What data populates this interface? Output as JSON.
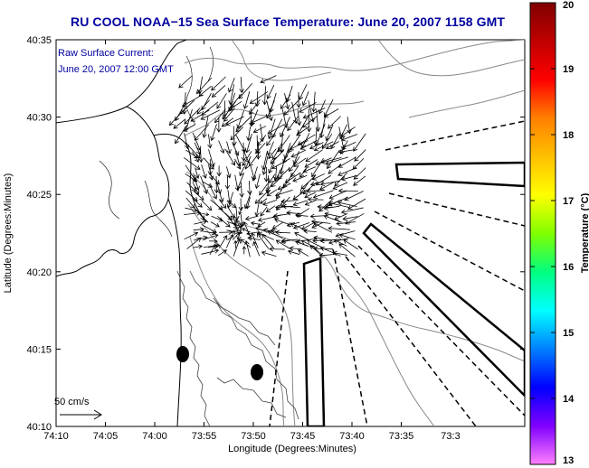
{
  "title": "RU COOL  NOAA−15  Sea Surface Temperature:  June 20, 2007 1158 GMT",
  "annotations": {
    "line1": "Raw Surface Current:",
    "line2": "June 20, 2007 12:00 GMT"
  },
  "scale_label": "50 cm/s",
  "axes": {
    "xlabel": "Longitude (Degrees:Minutes)",
    "ylabel": "Latitude (Degrees:Minutes)",
    "x_ticks": [
      "74:10",
      "74:05",
      "74:00",
      "73:55",
      "73:50",
      "73:45",
      "73:40",
      "73:35",
      "73:3"
    ],
    "y_ticks": [
      "40:35",
      "40:30",
      "40:25",
      "40:20",
      "40:15",
      "40:10"
    ]
  },
  "colorbar": {
    "title": "Temperature (°C)",
    "ticks": [
      "20",
      "19",
      "18",
      "17",
      "16",
      "15",
      "14",
      "13"
    ],
    "min": 13,
    "max": 20,
    "colors": [
      "#ff80ff",
      "#8000ff",
      "#0000ff",
      "#0080ff",
      "#00ffff",
      "#00ff80",
      "#80ff00",
      "#ffff00",
      "#ffc000",
      "#ff8000",
      "#ff0000",
      "#c00000",
      "#800000"
    ]
  }
}
